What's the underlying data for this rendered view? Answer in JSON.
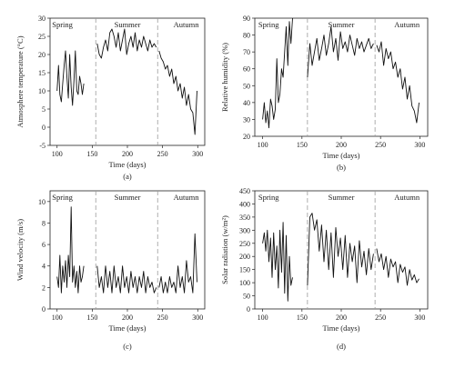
{
  "chart_data": [
    {
      "id": "a",
      "type": "line",
      "sublabel": "(a)",
      "xlabel": "Time (days)",
      "ylabel": "Atmosphere temperature (°C)",
      "xlim": [
        90,
        310
      ],
      "ylim": [
        -5,
        30
      ],
      "xticks": [
        100,
        150,
        200,
        250,
        300
      ],
      "yticks": [
        -5,
        0,
        5,
        10,
        15,
        20,
        25,
        30
      ],
      "dividers": [
        155,
        243
      ],
      "seasons": [
        "Spring",
        "Summer",
        "Autumn"
      ],
      "series": [
        {
          "x": [
            100,
            102,
            104,
            106,
            108,
            110,
            112,
            114,
            116,
            118,
            120,
            122,
            124,
            126,
            128,
            130,
            132,
            134,
            136,
            138
          ],
          "y": [
            10,
            17,
            9,
            7,
            12,
            17,
            21,
            14,
            8,
            20,
            11,
            6,
            13,
            21,
            10,
            9,
            14,
            12,
            9,
            12
          ]
        },
        {
          "x": [
            157,
            160,
            163,
            166,
            169,
            172,
            175,
            178,
            181,
            184,
            187,
            190,
            193,
            196,
            199,
            202,
            205,
            208,
            211,
            214,
            217,
            220,
            223,
            226,
            229,
            232,
            235,
            238,
            241
          ],
          "y": [
            23,
            20,
            19,
            22,
            24,
            21,
            26,
            27,
            25,
            22,
            26,
            21,
            24,
            27,
            20,
            23,
            25,
            22,
            26,
            21,
            24,
            22,
            25,
            23,
            21,
            24,
            22,
            23,
            22
          ]
        },
        {
          "x": [
            245,
            248,
            251,
            254,
            257,
            260,
            263,
            266,
            269,
            272,
            275,
            278,
            281,
            284,
            287,
            290,
            293,
            296,
            299
          ],
          "y": [
            21,
            19,
            18,
            16,
            17,
            14,
            16,
            12,
            14,
            10,
            12,
            8,
            11,
            6,
            9,
            5,
            4,
            -2,
            10
          ]
        }
      ]
    },
    {
      "id": "b",
      "type": "line",
      "sublabel": "(b)",
      "xlabel": "Time (days)",
      "ylabel": "Relative humidity (%)",
      "xlim": [
        90,
        310
      ],
      "ylim": [
        20,
        90
      ],
      "xticks": [
        100,
        150,
        200,
        250,
        300
      ],
      "yticks": [
        20,
        30,
        40,
        50,
        60,
        70,
        80,
        90
      ],
      "dividers": [
        157,
        243
      ],
      "seasons": [
        "Spring",
        "Summer",
        "Autumn"
      ],
      "series": [
        {
          "x": [
            100,
            102,
            104,
            106,
            108,
            110,
            112,
            114,
            116,
            118,
            120,
            122,
            124,
            126,
            128,
            130,
            132,
            134,
            136,
            138
          ],
          "y": [
            30,
            40,
            28,
            35,
            25,
            42,
            38,
            30,
            36,
            66,
            40,
            45,
            60,
            55,
            70,
            85,
            62,
            88,
            75,
            90
          ]
        },
        {
          "x": [
            157,
            160,
            163,
            166,
            169,
            172,
            175,
            178,
            181,
            184,
            187,
            190,
            193,
            196,
            199,
            202,
            205,
            208,
            211,
            214,
            217,
            220,
            223,
            226,
            229,
            232,
            235,
            238,
            241
          ],
          "y": [
            55,
            75,
            62,
            70,
            78,
            65,
            72,
            80,
            68,
            75,
            85,
            70,
            78,
            65,
            82,
            72,
            76,
            70,
            80,
            74,
            68,
            78,
            72,
            76,
            70,
            74,
            78,
            72,
            75
          ]
        },
        {
          "x": [
            245,
            248,
            251,
            254,
            257,
            260,
            263,
            266,
            269,
            272,
            275,
            278,
            281,
            284,
            287,
            290,
            293,
            296,
            299
          ],
          "y": [
            74,
            70,
            76,
            62,
            72,
            66,
            70,
            60,
            64,
            55,
            60,
            48,
            55,
            42,
            50,
            38,
            35,
            28,
            40
          ]
        }
      ]
    },
    {
      "id": "c",
      "type": "line",
      "sublabel": "(c)",
      "xlabel": "Time (days)",
      "ylabel": "Wind velocity (m/s)",
      "xlim": [
        90,
        310
      ],
      "ylim": [
        0,
        11
      ],
      "xticks": [
        100,
        150,
        200,
        250,
        300
      ],
      "yticks": [
        0,
        2,
        4,
        6,
        8,
        10
      ],
      "dividers": [
        155,
        243
      ],
      "seasons": [
        "Spring",
        "Summer",
        "Autumn"
      ],
      "series": [
        {
          "x": [
            100,
            102,
            104,
            106,
            108,
            110,
            112,
            114,
            116,
            118,
            120,
            122,
            124,
            126,
            128,
            130,
            132,
            134,
            136,
            138
          ],
          "y": [
            3,
            2,
            5,
            1.5,
            4,
            2.5,
            4.5,
            2,
            5,
            3,
            9.5,
            2.5,
            4,
            2,
            3.5,
            1.5,
            4,
            2.5,
            3,
            4
          ]
        },
        {
          "x": [
            157,
            160,
            163,
            166,
            169,
            172,
            175,
            178,
            181,
            184,
            187,
            190,
            193,
            196,
            199,
            202,
            205,
            208,
            211,
            214,
            217,
            220,
            223,
            226,
            229,
            232,
            235,
            238,
            241
          ],
          "y": [
            4,
            2,
            3,
            1.5,
            4,
            2,
            3.5,
            1.5,
            4,
            2,
            3,
            1.5,
            4,
            2,
            3,
            1.5,
            3.5,
            2,
            3,
            1.5,
            3,
            2,
            3.5,
            1.5,
            3,
            2,
            2.5,
            1.5,
            2
          ]
        },
        {
          "x": [
            245,
            248,
            251,
            254,
            257,
            260,
            263,
            266,
            269,
            272,
            275,
            278,
            281,
            284,
            287,
            290,
            293,
            296,
            299
          ],
          "y": [
            2,
            3,
            1.5,
            2.5,
            1.5,
            3,
            2,
            2.5,
            1.5,
            4,
            2,
            3,
            1.5,
            4.5,
            2.5,
            3,
            1.5,
            7,
            2.5
          ]
        }
      ]
    },
    {
      "id": "d",
      "type": "line",
      "sublabel": "(d)",
      "xlabel": "Time (days)",
      "ylabel": "Solar radiation (w/m²)",
      "xlim": [
        90,
        310
      ],
      "ylim": [
        0,
        450
      ],
      "xticks": [
        100,
        150,
        200,
        250,
        300
      ],
      "yticks": [
        0,
        50,
        100,
        150,
        200,
        250,
        300,
        350,
        400,
        450
      ],
      "dividers": [
        157,
        243
      ],
      "seasons": [
        "Spring",
        "Summer",
        "Autumn"
      ],
      "series": [
        {
          "x": [
            100,
            102,
            104,
            106,
            108,
            110,
            112,
            114,
            116,
            118,
            120,
            122,
            124,
            126,
            128,
            130,
            132,
            134,
            136,
            138
          ],
          "y": [
            250,
            290,
            220,
            300,
            180,
            270,
            120,
            290,
            150,
            240,
            80,
            300,
            140,
            330,
            60,
            280,
            30,
            200,
            90,
            120
          ]
        },
        {
          "x": [
            157,
            160,
            163,
            166,
            169,
            172,
            175,
            178,
            181,
            184,
            187,
            190,
            193,
            196,
            199,
            202,
            205,
            208,
            211,
            214,
            217,
            220,
            223,
            226,
            229,
            232,
            235,
            238,
            241
          ],
          "y": [
            90,
            350,
            365,
            300,
            340,
            220,
            320,
            180,
            300,
            150,
            290,
            120,
            310,
            200,
            270,
            150,
            280,
            120,
            250,
            180,
            240,
            100,
            260,
            160,
            220,
            130,
            230,
            150,
            210
          ]
        },
        {
          "x": [
            245,
            248,
            251,
            254,
            257,
            260,
            263,
            266,
            269,
            272,
            275,
            278,
            281,
            284,
            287,
            290,
            293,
            296,
            299
          ],
          "y": [
            230,
            180,
            210,
            150,
            200,
            120,
            190,
            160,
            180,
            100,
            170,
            140,
            160,
            90,
            150,
            110,
            130,
            100,
            115
          ]
        }
      ]
    }
  ]
}
